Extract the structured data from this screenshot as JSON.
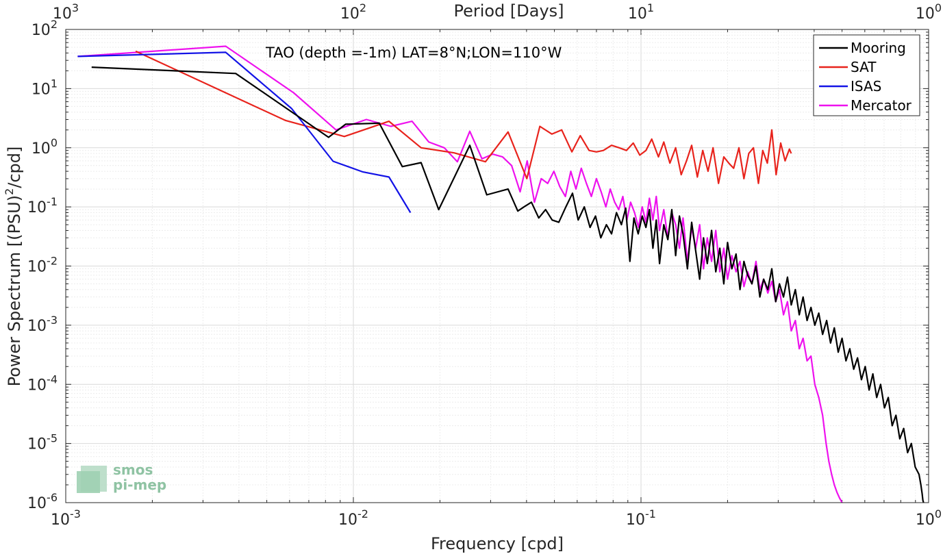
{
  "chart_data": {
    "type": "line",
    "title": "",
    "annotation": "TAO (depth =-1m) LAT=8°N;LON=110°W",
    "xlabel": "Frequency [cpd]",
    "ylabel_parts": {
      "pre": "Power Spectrum [(PSU)",
      "sup": "2",
      "post": "/cpd]"
    },
    "top_xlabel": "Period [Days]",
    "xscale": "log",
    "yscale": "log",
    "xlim": [
      0.001,
      1
    ],
    "ylim": [
      1e-06,
      100
    ],
    "grid": true,
    "legend_position": "top-right",
    "x_ticks": [
      {
        "value": 0.001,
        "base": "10",
        "exp": "-3"
      },
      {
        "value": 0.01,
        "base": "10",
        "exp": "-2"
      },
      {
        "value": 0.1,
        "base": "10",
        "exp": "-1"
      },
      {
        "value": 1,
        "base": "10",
        "exp": "0"
      }
    ],
    "y_ticks": [
      {
        "value": 1e-06,
        "base": "10",
        "exp": "-6"
      },
      {
        "value": 1e-05,
        "base": "10",
        "exp": "-5"
      },
      {
        "value": 0.0001,
        "base": "10",
        "exp": "-4"
      },
      {
        "value": 0.001,
        "base": "10",
        "exp": "-3"
      },
      {
        "value": 0.01,
        "base": "10",
        "exp": "-2"
      },
      {
        "value": 0.1,
        "base": "10",
        "exp": "-1"
      },
      {
        "value": 1,
        "base": "10",
        "exp": "0"
      },
      {
        "value": 10,
        "base": "10",
        "exp": "1"
      },
      {
        "value": 100,
        "base": "10",
        "exp": "2"
      }
    ],
    "top_ticks": [
      {
        "value": 0.001,
        "base": "10",
        "exp": "3"
      },
      {
        "value": 0.01,
        "base": "10",
        "exp": "2"
      },
      {
        "value": 0.1,
        "base": "10",
        "exp": "1"
      },
      {
        "value": 1,
        "base": "10",
        "exp": "0"
      }
    ],
    "series": [
      {
        "name": "Mooring",
        "color": "#000000",
        "x": [
          0.00123,
          0.0039,
          0.0082,
          0.0094,
          0.0123,
          0.0148,
          0.0172,
          0.0198,
          0.0254,
          0.0291,
          0.0345,
          0.0373,
          0.0392,
          0.0416,
          0.0441,
          0.0466,
          0.0491,
          0.0518,
          0.0548,
          0.0578,
          0.0605,
          0.0635,
          0.0665,
          0.0695,
          0.0725,
          0.0758,
          0.079,
          0.0822,
          0.0855,
          0.0885,
          0.0915,
          0.0945,
          0.0978,
          0.101,
          0.104,
          0.107,
          0.11,
          0.113,
          0.116,
          0.12,
          0.124,
          0.128,
          0.132,
          0.136,
          0.14,
          0.145,
          0.15,
          0.155,
          0.16,
          0.165,
          0.17,
          0.176,
          0.182,
          0.188,
          0.194,
          0.2,
          0.207,
          0.214,
          0.221,
          0.228,
          0.235,
          0.243,
          0.251,
          0.259,
          0.267,
          0.276,
          0.285,
          0.294,
          0.303,
          0.313,
          0.323,
          0.333,
          0.344,
          0.355,
          0.366,
          0.378,
          0.39,
          0.402,
          0.415,
          0.428,
          0.442,
          0.456,
          0.47,
          0.485,
          0.5,
          0.516,
          0.532,
          0.549,
          0.566,
          0.584,
          0.602,
          0.621,
          0.64,
          0.66,
          0.681,
          0.702,
          0.724,
          0.747,
          0.77,
          0.794,
          0.819,
          0.845,
          0.871,
          0.898,
          0.926,
          0.94,
          0.95,
          0.955,
          0.96
        ],
        "y": [
          23,
          18,
          1.5,
          2.5,
          2.6,
          0.48,
          0.56,
          0.09,
          1.1,
          0.16,
          0.2,
          0.085,
          0.1,
          0.12,
          0.065,
          0.09,
          0.06,
          0.055,
          0.1,
          0.17,
          0.06,
          0.1,
          0.045,
          0.07,
          0.03,
          0.05,
          0.035,
          0.08,
          0.05,
          0.095,
          0.012,
          0.065,
          0.035,
          0.07,
          0.045,
          0.09,
          0.02,
          0.06,
          0.011,
          0.05,
          0.028,
          0.09,
          0.015,
          0.07,
          0.035,
          0.009,
          0.055,
          0.018,
          0.006,
          0.03,
          0.011,
          0.04,
          0.008,
          0.02,
          0.005,
          0.025,
          0.009,
          0.016,
          0.004,
          0.012,
          0.007,
          0.005,
          0.01,
          0.003,
          0.006,
          0.004,
          0.009,
          0.0025,
          0.005,
          0.003,
          0.0065,
          0.0022,
          0.004,
          0.0015,
          0.003,
          0.0012,
          0.002,
          0.001,
          0.0016,
          0.0007,
          0.0012,
          0.0005,
          0.0009,
          0.00035,
          0.0006,
          0.00025,
          0.0004,
          0.00018,
          0.00028,
          0.00012,
          0.0002,
          8e-05,
          0.00015,
          6e-05,
          0.0001,
          4e-05,
          6e-05,
          2e-05,
          3e-05,
          1.2e-05,
          1.8e-05,
          7e-06,
          1e-05,
          4e-06,
          3e-06,
          2e-06,
          1.4e-06,
          1.1e-06,
          1e-06
        ]
      },
      {
        "name": "SAT",
        "color": "#e8231c",
        "x": [
          0.00175,
          0.0058,
          0.0093,
          0.0133,
          0.0172,
          0.0224,
          0.0288,
          0.0345,
          0.0401,
          0.0445,
          0.049,
          0.053,
          0.0575,
          0.0615,
          0.066,
          0.07,
          0.074,
          0.079,
          0.084,
          0.089,
          0.094,
          0.099,
          0.104,
          0.109,
          0.115,
          0.12,
          0.126,
          0.132,
          0.138,
          0.144,
          0.15,
          0.157,
          0.164,
          0.171,
          0.178,
          0.186,
          0.194,
          0.202,
          0.21,
          0.219,
          0.228,
          0.237,
          0.246,
          0.256,
          0.265,
          0.275,
          0.285,
          0.295,
          0.306,
          0.317,
          0.328,
          0.333
        ],
        "y": [
          43,
          2.9,
          1.55,
          2.8,
          1.0,
          0.82,
          0.58,
          1.85,
          0.3,
          2.3,
          1.7,
          2.0,
          0.85,
          1.6,
          0.9,
          0.85,
          0.9,
          1.1,
          1.0,
          0.9,
          1.2,
          0.75,
          0.9,
          1.4,
          0.7,
          1.25,
          0.55,
          1.0,
          0.35,
          0.6,
          1.1,
          0.32,
          0.9,
          0.4,
          1.0,
          0.25,
          0.7,
          0.55,
          0.45,
          1.0,
          0.3,
          0.8,
          1.0,
          0.25,
          0.9,
          0.55,
          2.0,
          0.35,
          1.2,
          0.6,
          0.95,
          0.8
        ]
      },
      {
        "name": "ISAS",
        "color": "#1313e6",
        "x": [
          0.0011,
          0.0036,
          0.0061,
          0.0085,
          0.0108,
          0.0133,
          0.0158
        ],
        "y": [
          35,
          41,
          4.6,
          0.59,
          0.39,
          0.32,
          0.08
        ]
      },
      {
        "name": "Mercator",
        "color": "#ee11ee",
        "x": [
          0.0011,
          0.0036,
          0.0062,
          0.0087,
          0.0111,
          0.0135,
          0.016,
          0.0183,
          0.0207,
          0.023,
          0.0254,
          0.028,
          0.0305,
          0.033,
          0.0355,
          0.038,
          0.0402,
          0.0426,
          0.045,
          0.0474,
          0.0498,
          0.0522,
          0.0546,
          0.057,
          0.0594,
          0.062,
          0.0646,
          0.0672,
          0.07,
          0.0727,
          0.0755,
          0.0782,
          0.081,
          0.0837,
          0.0865,
          0.0893,
          0.092,
          0.095,
          0.098,
          0.101,
          0.104,
          0.107,
          0.11,
          0.113,
          0.116,
          0.12,
          0.124,
          0.128,
          0.132,
          0.136,
          0.14,
          0.145,
          0.15,
          0.155,
          0.16,
          0.165,
          0.17,
          0.176,
          0.182,
          0.188,
          0.194,
          0.2,
          0.207,
          0.214,
          0.221,
          0.228,
          0.235,
          0.243,
          0.251,
          0.259,
          0.267,
          0.276,
          0.285,
          0.294,
          0.303,
          0.313,
          0.323,
          0.333,
          0.344,
          0.355,
          0.366,
          0.378,
          0.39,
          0.402,
          0.415,
          0.428,
          0.44,
          0.45,
          0.46,
          0.47,
          0.48,
          0.49,
          0.495,
          0.5
        ],
        "y": [
          35,
          52,
          8.5,
          2.0,
          3.0,
          2.3,
          2.8,
          1.25,
          1.0,
          0.58,
          1.9,
          0.65,
          0.78,
          0.7,
          0.5,
          0.18,
          0.6,
          0.12,
          0.3,
          0.25,
          0.4,
          0.22,
          0.15,
          0.4,
          0.2,
          0.45,
          0.25,
          0.15,
          0.3,
          0.18,
          0.1,
          0.2,
          0.12,
          0.09,
          0.15,
          0.06,
          0.12,
          0.08,
          0.045,
          0.1,
          0.055,
          0.14,
          0.06,
          0.15,
          0.04,
          0.09,
          0.03,
          0.08,
          0.05,
          0.02,
          0.065,
          0.012,
          0.045,
          0.02,
          0.05,
          0.009,
          0.03,
          0.012,
          0.04,
          0.008,
          0.02,
          0.006,
          0.015,
          0.008,
          0.012,
          0.0045,
          0.008,
          0.005,
          0.012,
          0.004,
          0.006,
          0.0035,
          0.0055,
          0.0025,
          0.004,
          0.0015,
          0.0025,
          0.0008,
          0.0012,
          0.0004,
          0.0006,
          0.00025,
          0.0003,
          0.0001,
          6e-05,
          3e-05,
          1e-05,
          5e-06,
          3e-06,
          2e-06,
          1.5e-06,
          1.2e-06,
          1.1e-06,
          1e-06
        ]
      }
    ]
  },
  "logo": {
    "line1": "smos",
    "line2": "pi-mep"
  }
}
